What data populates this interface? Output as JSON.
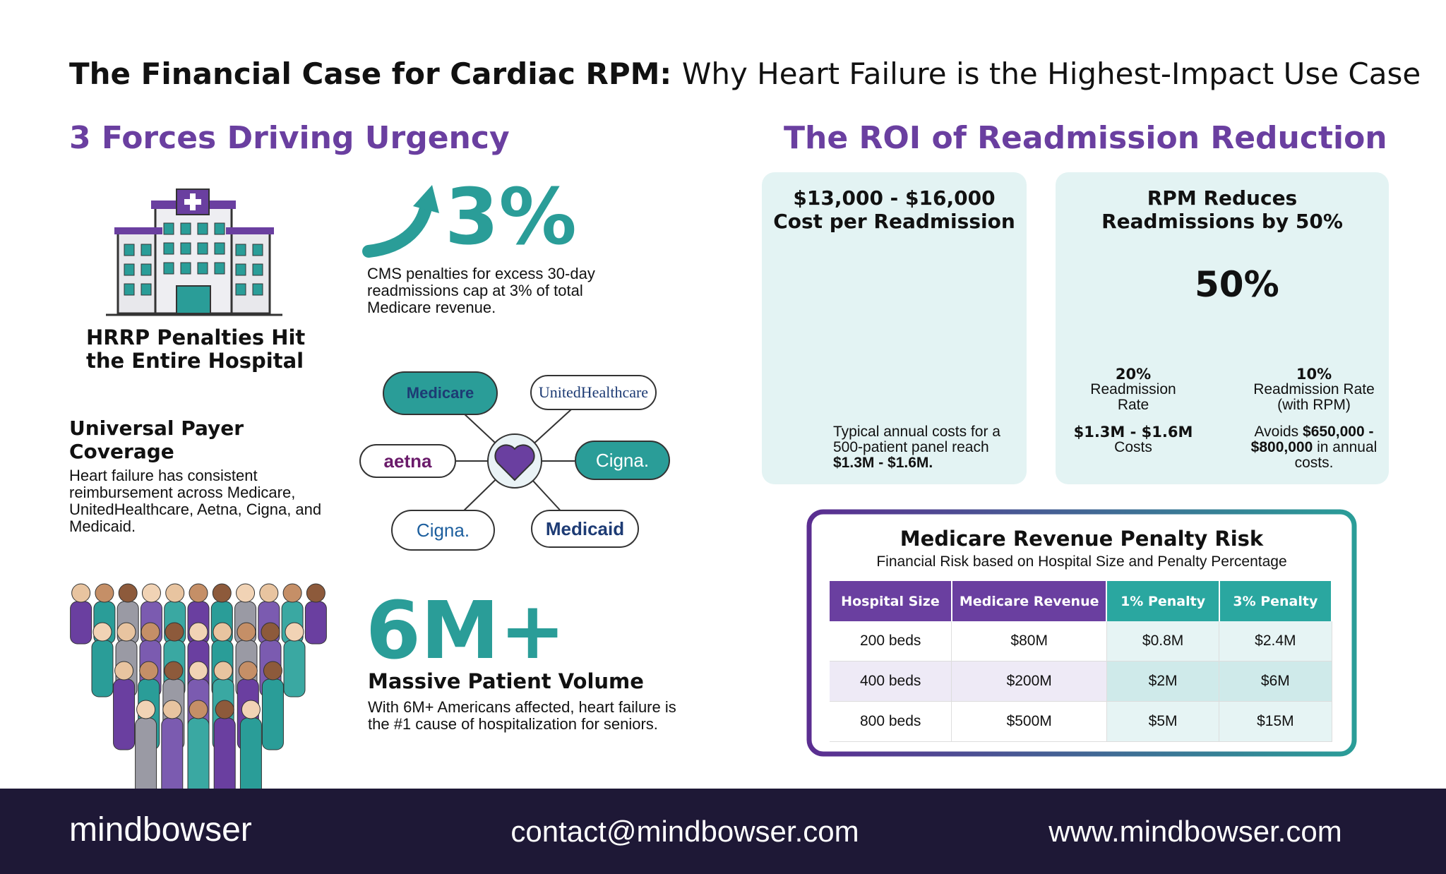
{
  "header": {
    "title_bold": "The Financial Case for Cardiac RPM:",
    "title_rest": "Why Heart Failure is the Highest-Impact Use Case"
  },
  "forces": {
    "heading": "3 Forces Driving Urgency",
    "hrrp": {
      "title_line1": "HRRP Penalties Hit",
      "title_line2": "the Entire Hospital",
      "stat": "3%",
      "text": "CMS penalties for excess 30-day readmissions cap at 3% of total Medicare revenue."
    },
    "payer": {
      "title": "Universal Payer Coverage",
      "text": "Heart failure has consistent reimbursement across Medicare, UnitedHealthcare, Aetna, Cigna, and Medicaid.",
      "logos": [
        "Medicare",
        "UnitedHealthcare",
        "aetna",
        "Cigna.",
        "Cigna.",
        "Medicaid"
      ]
    },
    "volume": {
      "stat": "6M+",
      "title": "Massive Patient Volume",
      "text": "With 6M+ Americans affected, heart failure is the #1 cause of hospitalization for seniors."
    }
  },
  "roi": {
    "heading": "The ROI of Readmission Reduction",
    "cost_card": {
      "line1": "$13,000 - $16,000",
      "line2": "Cost per Readmission",
      "note": "Typical annual costs for a 500-patient panel reach ",
      "note_bold": "$1.3M - $1.6M."
    },
    "rpm_card": {
      "line1": "RPM Reduces",
      "line2": "Readmissions by 50%",
      "center_stat": "50%",
      "before": {
        "rate": "20%",
        "label_line1": "Readmission",
        "label_line2": "Rate",
        "cost": "$1.3M - $1.6M",
        "cost_label": "Costs"
      },
      "after": {
        "rate": "10%",
        "label_line1": "Readmission Rate",
        "label_line2": "(with RPM)",
        "pre": "Avoids ",
        "bold": "$650,000 - $800,000",
        "post": " in annual costs."
      }
    }
  },
  "table": {
    "title": "Medicare Revenue Penalty Risk",
    "subtitle": "Financial Risk based on Hospital Size and Penalty Percentage",
    "columns": [
      "Hospital Size",
      "Medicare Revenue",
      "1% Penalty",
      "3% Penalty"
    ],
    "rows": [
      [
        "200 beds",
        "$80M",
        "$0.8M",
        "$2.4M"
      ],
      [
        "400 beds",
        "$200M",
        "$2M",
        "$6M"
      ],
      [
        "800 beds",
        "$500M",
        "$5M",
        "$15M"
      ]
    ]
  },
  "footer": {
    "brand": "mindbowser",
    "email": "contact@mindbowser.com",
    "website": "www.mindbowser.com"
  }
}
